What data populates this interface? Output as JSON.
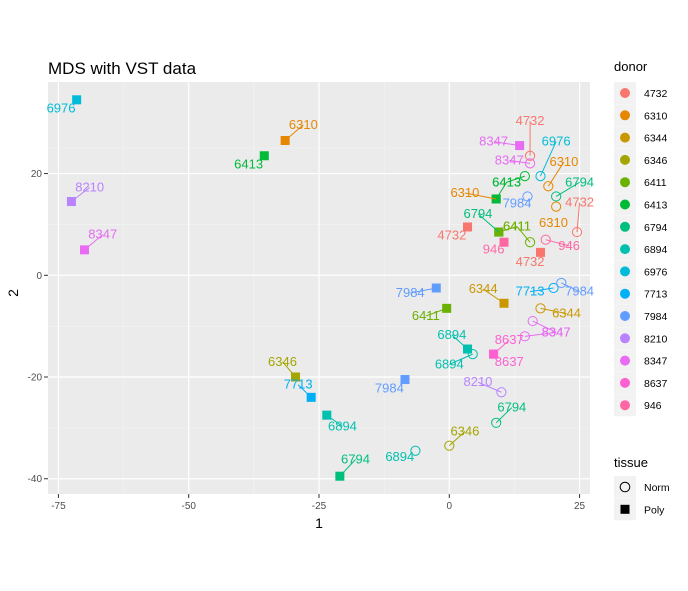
{
  "chart_data": {
    "type": "scatter",
    "title": "MDS with VST data",
    "xlabel": "1",
    "ylabel": "2",
    "xlim": [
      -77,
      27
    ],
    "ylim": [
      -43,
      38
    ],
    "xticks": [
      -75,
      -50,
      -25,
      0,
      25
    ],
    "yticks": [
      -40,
      -20,
      0,
      20
    ],
    "grid": true,
    "legend_position": "right",
    "donor_legend": {
      "title": "donor",
      "entries": [
        {
          "label": "4732",
          "color": "#F8766D"
        },
        {
          "label": "6310",
          "color": "#E58700"
        },
        {
          "label": "6344",
          "color": "#C99800"
        },
        {
          "label": "6346",
          "color": "#A3A500"
        },
        {
          "label": "6411",
          "color": "#6BB100"
        },
        {
          "label": "6413",
          "color": "#00BA38"
        },
        {
          "label": "6794",
          "color": "#00BF7D"
        },
        {
          "label": "6894",
          "color": "#00C0AF"
        },
        {
          "label": "6976",
          "color": "#00BCD8"
        },
        {
          "label": "7713",
          "color": "#00B0F6"
        },
        {
          "label": "7984",
          "color": "#619CFF"
        },
        {
          "label": "8210",
          "color": "#B983FF"
        },
        {
          "label": "8347",
          "color": "#E76BF3"
        },
        {
          "label": "8637",
          "color": "#FD61D1"
        },
        {
          "label": "946",
          "color": "#FF67A4"
        }
      ]
    },
    "tissue_legend": {
      "title": "tissue",
      "entries": [
        {
          "label": "Norm",
          "shape": "open-circle"
        },
        {
          "label": "Poly",
          "shape": "filled-square"
        }
      ]
    },
    "points": [
      {
        "x": -71.5,
        "y": 34.5,
        "donor": "6976",
        "tissue": "Poly",
        "label": "6976",
        "lx": -74.5,
        "ly": 32.0
      },
      {
        "x": -31.5,
        "y": 26.5,
        "donor": "6310",
        "tissue": "Poly",
        "label": "6310",
        "lx": -28.0,
        "ly": 28.8
      },
      {
        "x": -35.5,
        "y": 23.5,
        "donor": "6413",
        "tissue": "Poly",
        "label": "6413",
        "lx": -38.5,
        "ly": 21.0
      },
      {
        "x": -72.5,
        "y": 14.5,
        "donor": "8210",
        "tissue": "Poly",
        "label": "8210",
        "lx": -69.0,
        "ly": 16.5
      },
      {
        "x": -70.0,
        "y": 5.0,
        "donor": "8347",
        "tissue": "Poly",
        "label": "8347",
        "lx": -66.5,
        "ly": 7.2
      },
      {
        "x": -2.5,
        "y": -2.5,
        "donor": "7984",
        "tissue": "Poly",
        "label": "7984",
        "lx": -7.5,
        "ly": -4.3
      },
      {
        "x": -0.5,
        "y": -6.5,
        "donor": "6411",
        "tissue": "Poly",
        "label": "6411",
        "lx": -4.5,
        "ly": -8.8
      },
      {
        "x": 10.5,
        "y": -5.5,
        "donor": "6344",
        "tissue": "Poly",
        "label": "6344",
        "lx": 6.5,
        "ly": -3.5
      },
      {
        "x": 3.5,
        "y": -14.5,
        "donor": "6894",
        "tissue": "Poly",
        "label": "6894",
        "lx": 0.5,
        "ly": -12.5
      },
      {
        "x": 4.5,
        "y": -15.5,
        "donor": "6894",
        "tissue": "Norm",
        "label": "6894",
        "lx": 0.0,
        "ly": -18.3
      },
      {
        "x": 8.5,
        "y": -15.5,
        "donor": "8637",
        "tissue": "Poly",
        "label": "8637",
        "lx": 11.5,
        "ly": -13.5
      },
      {
        "x": 8.5,
        "y": -15.5,
        "donor": "8637",
        "tissue": "Poly",
        "label": "8637",
        "lx": 11.5,
        "ly": -17.8
      },
      {
        "x": -29.5,
        "y": -20.0,
        "donor": "6346",
        "tissue": "Poly",
        "label": "6346",
        "lx": -32.0,
        "ly": -17.8
      },
      {
        "x": -26.5,
        "y": -24.0,
        "donor": "7713",
        "tissue": "Poly",
        "label": "7713",
        "lx": -29.0,
        "ly": -22.3
      },
      {
        "x": -23.5,
        "y": -27.5,
        "donor": "6894",
        "tissue": "Poly",
        "label": "6894",
        "lx": -20.5,
        "ly": -30.5
      },
      {
        "x": -8.5,
        "y": -20.5,
        "donor": "7984",
        "tissue": "Poly",
        "label": "7984",
        "lx": -11.5,
        "ly": -23.0
      },
      {
        "x": -21.0,
        "y": -39.5,
        "donor": "6794",
        "tissue": "Poly",
        "label": "6794",
        "lx": -18.0,
        "ly": -37.0
      },
      {
        "x": 10.0,
        "y": -23.0,
        "donor": "8210",
        "tissue": "Norm",
        "label": "8210",
        "lx": 5.5,
        "ly": -21.8
      },
      {
        "x": 9.0,
        "y": -29.0,
        "donor": "6794",
        "tissue": "Norm",
        "label": "6794",
        "lx": 12.0,
        "ly": -26.8
      },
      {
        "x": 0.0,
        "y": -33.5,
        "donor": "6346",
        "tissue": "Norm",
        "label": "6346",
        "lx": 3.0,
        "ly": -31.5
      },
      {
        "x": -6.5,
        "y": -34.5,
        "donor": "6894",
        "tissue": "Norm",
        "label": "6894",
        "lx": -9.5,
        "ly": -36.5
      },
      {
        "x": 9.0,
        "y": 15.0,
        "donor": "6310",
        "tissue": "Poly",
        "label": "6310",
        "lx": 3.0,
        "ly": 15.4
      },
      {
        "x": 9.0,
        "y": 15.0,
        "donor": "6413",
        "tissue": "Poly",
        "label": "6413",
        "lx": 11.0,
        "ly": 17.5
      },
      {
        "x": 3.5,
        "y": 9.5,
        "donor": "4732",
        "tissue": "Poly",
        "label": "4732",
        "lx": 0.5,
        "ly": 7.0
      },
      {
        "x": 9.5,
        "y": 8.5,
        "donor": "6794",
        "tissue": "Poly",
        "label": "6794",
        "lx": 5.5,
        "ly": 11.3
      },
      {
        "x": 9.5,
        "y": 8.5,
        "donor": "6411",
        "tissue": "Poly",
        "label": "6411",
        "lx": 13.0,
        "ly": 8.8
      },
      {
        "x": 10.5,
        "y": 6.5,
        "donor": "946",
        "tissue": "Poly",
        "label": "946",
        "lx": 8.5,
        "ly": 4.3
      },
      {
        "x": 17.5,
        "y": 4.5,
        "donor": "4732",
        "tissue": "Poly",
        "label": "4732",
        "lx": 15.5,
        "ly": 1.8
      },
      {
        "x": 13.5,
        "y": 25.5,
        "donor": "8347",
        "tissue": "Poly",
        "label": "8347",
        "lx": 8.5,
        "ly": 25.5
      },
      {
        "x": 15.0,
        "y": 15.5,
        "donor": "7984",
        "tissue": "Norm",
        "label": "7984",
        "lx": 13.0,
        "ly": 13.3
      },
      {
        "x": 15.5,
        "y": 23.5,
        "donor": "4732",
        "tissue": "Norm",
        "label": "4732",
        "lx": 15.5,
        "ly": 29.5
      },
      {
        "x": 15.5,
        "y": 22.0,
        "donor": "8347",
        "tissue": "Norm",
        "label": "8347",
        "lx": 11.5,
        "ly": 21.8
      },
      {
        "x": 14.5,
        "y": 19.5,
        "donor": "6413",
        "tissue": "Norm",
        "label": "6413",
        "lx": 11.0,
        "ly": 17.5
      },
      {
        "x": 17.5,
        "y": 19.5,
        "donor": "6976",
        "tissue": "Norm",
        "label": "6976",
        "lx": 20.5,
        "ly": 25.5
      },
      {
        "x": 19.0,
        "y": 17.5,
        "donor": "6310",
        "tissue": "Norm",
        "label": "6310",
        "lx": 22.0,
        "ly": 21.5
      },
      {
        "x": 20.5,
        "y": 15.5,
        "donor": "6794",
        "tissue": "Norm",
        "label": "6794",
        "lx": 25.0,
        "ly": 17.5
      },
      {
        "x": 20.5,
        "y": 13.5,
        "donor": "6310",
        "tissue": "Norm",
        "label": "6310",
        "lx": 20.0,
        "ly": 9.5
      },
      {
        "x": 24.5,
        "y": 8.5,
        "donor": "4732",
        "tissue": "Norm",
        "label": "4732",
        "lx": 25.0,
        "ly": 13.5
      },
      {
        "x": 18.5,
        "y": 7.0,
        "donor": "946",
        "tissue": "Norm",
        "label": "946",
        "lx": 23.0,
        "ly": 5.0
      },
      {
        "x": 15.5,
        "y": 6.5,
        "donor": "6411",
        "tissue": "Norm",
        "label": "6411",
        "lx": 13.0,
        "ly": 8.8
      },
      {
        "x": 20.0,
        "y": -2.5,
        "donor": "7713",
        "tissue": "Norm",
        "label": "7713",
        "lx": 15.5,
        "ly": -4.0
      },
      {
        "x": 21.5,
        "y": -1.5,
        "donor": "7984",
        "tissue": "Norm",
        "label": "7984",
        "lx": 25.0,
        "ly": -4.0
      },
      {
        "x": 17.5,
        "y": -6.5,
        "donor": "6344",
        "tissue": "Norm",
        "label": "6344",
        "lx": 22.5,
        "ly": -8.3
      },
      {
        "x": 16.0,
        "y": -9.0,
        "donor": "8347",
        "tissue": "Norm",
        "label": "8347",
        "lx": 20.5,
        "ly": -12.0
      },
      {
        "x": 14.5,
        "y": -12.0,
        "donor": "8347",
        "tissue": "Norm",
        "label": "8347",
        "lx": 20.5,
        "ly": -12.0
      }
    ]
  }
}
